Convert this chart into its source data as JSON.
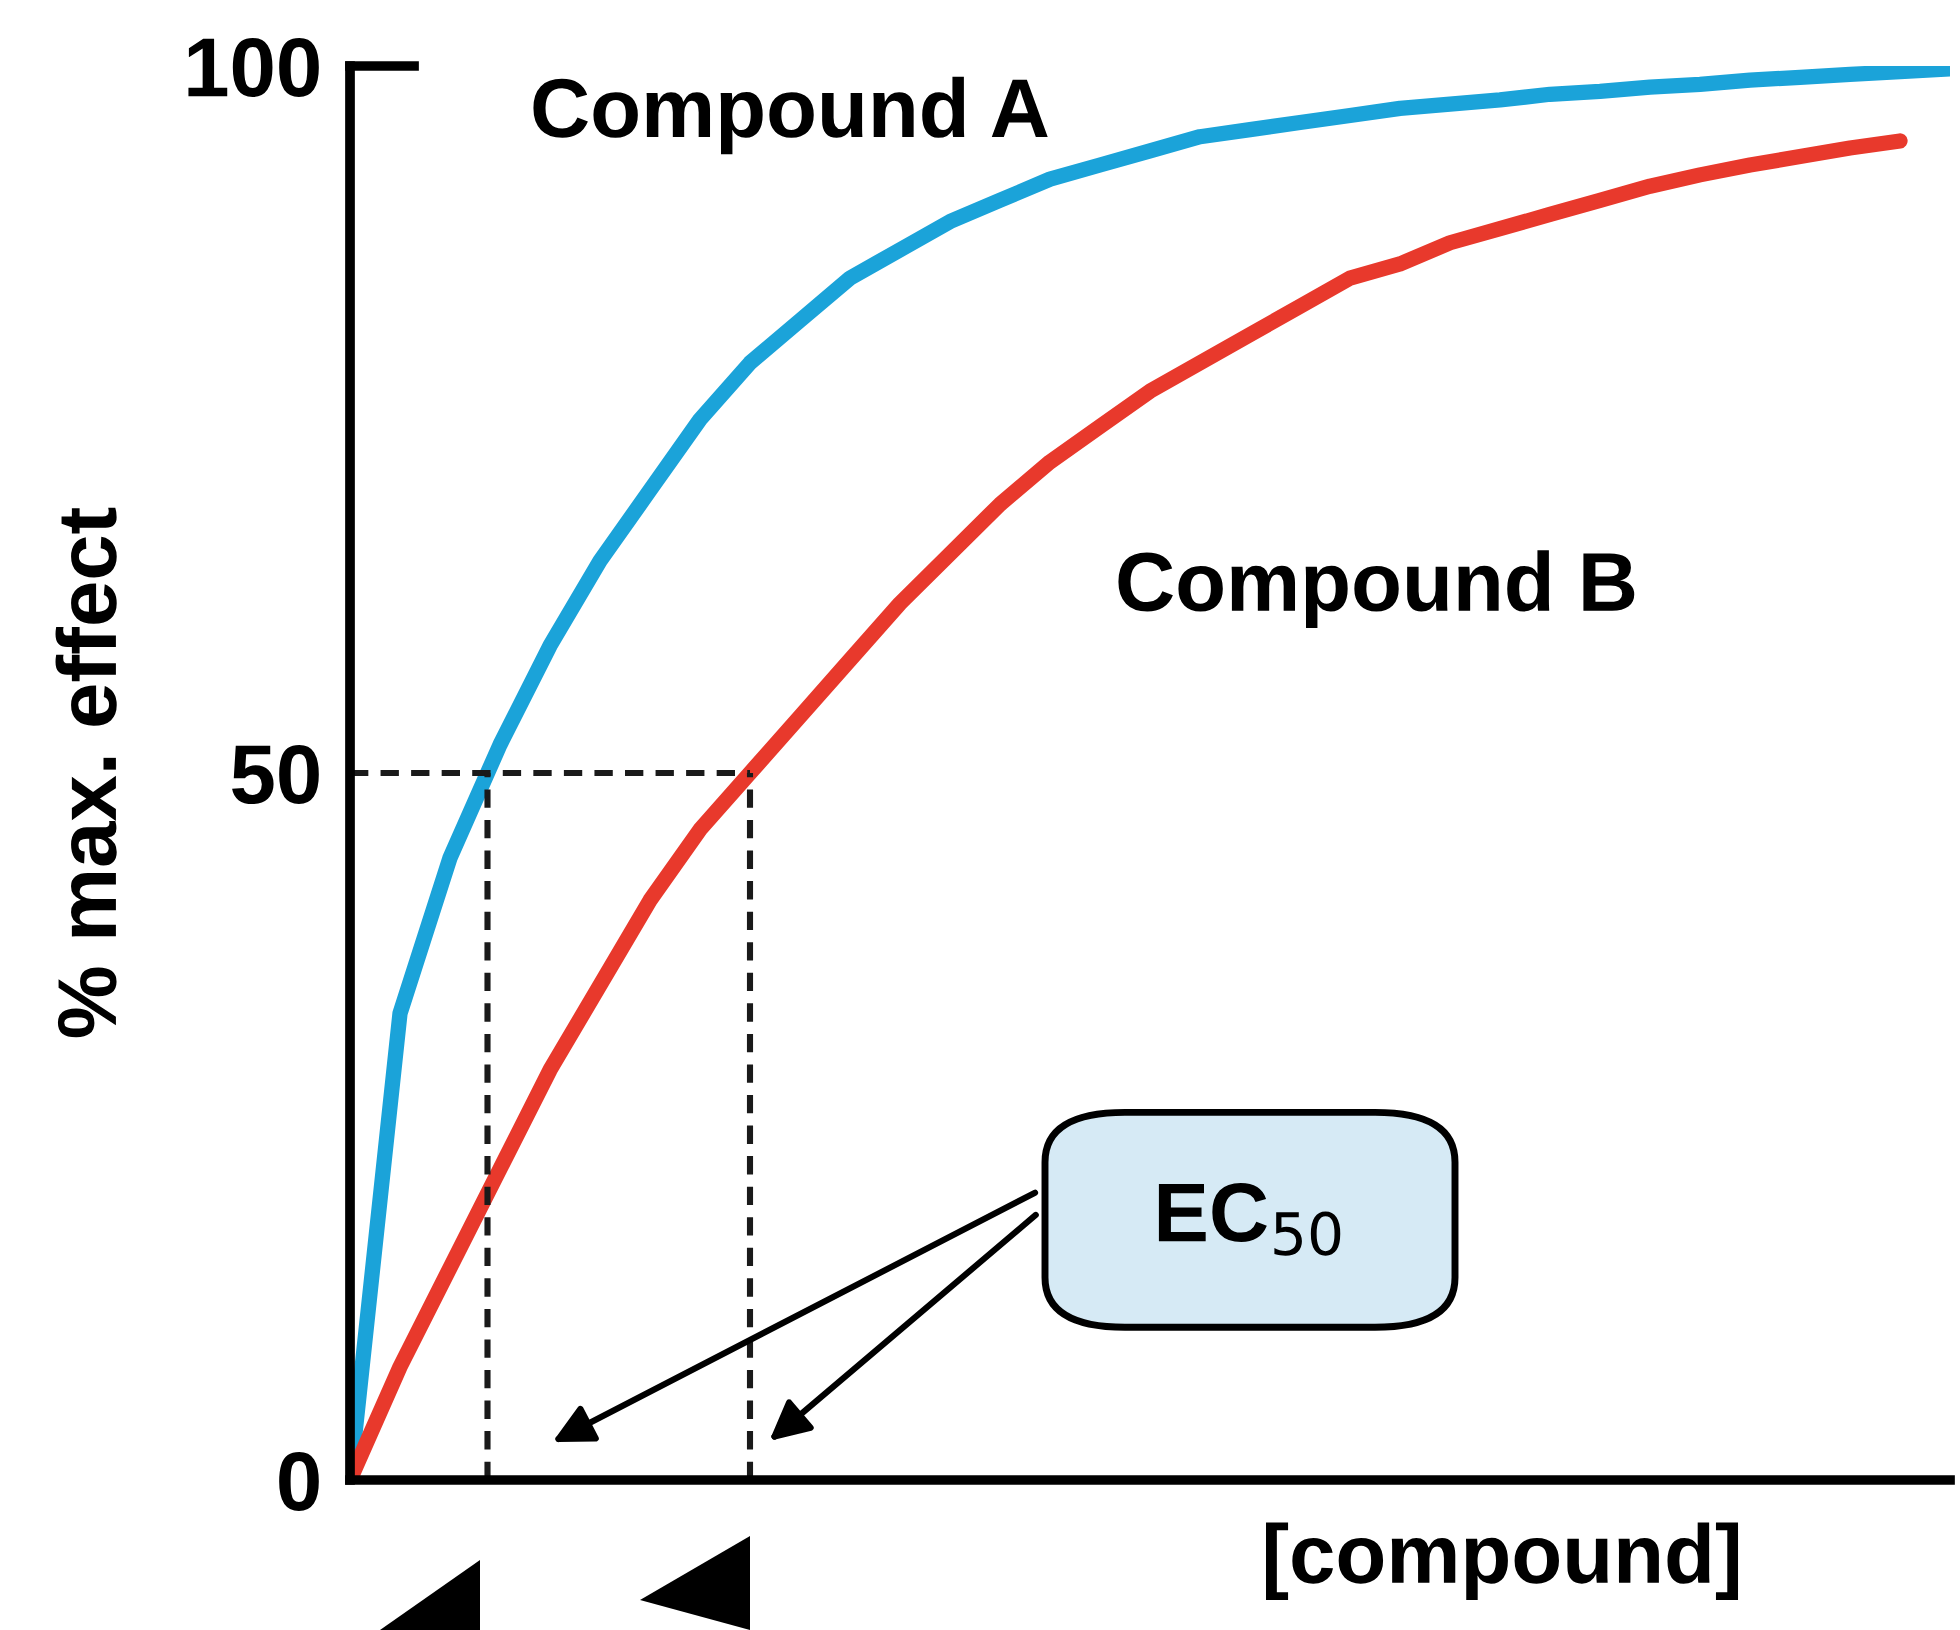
{
  "chart_data": {
    "type": "line",
    "ylabel": "% max. effect",
    "xlabel": "[compound]",
    "categories": [
      null,
      null,
      null,
      null,
      null,
      null,
      null,
      null,
      null,
      null,
      null,
      null,
      null,
      null,
      null,
      null,
      null,
      null,
      null,
      null,
      null,
      null,
      null,
      null,
      null,
      null,
      null,
      null,
      null,
      null,
      null,
      null,
      null
    ],
    "series": [
      {
        "name": "Compound A",
        "color": "#1ba3d9",
        "values": [
          0,
          33,
          44,
          52,
          59,
          65,
          70,
          75,
          79,
          82,
          85,
          87,
          89,
          90.5,
          92,
          93,
          94,
          95,
          95.5,
          96,
          96.5,
          97,
          97.3,
          97.6,
          98,
          98.2,
          98.5,
          98.7,
          99,
          99.2,
          99.4,
          99.6,
          99.8
        ]
      },
      {
        "name": "Compound B",
        "color": "#e8392c",
        "values": [
          0,
          8,
          15,
          22,
          29,
          35,
          41,
          46,
          50,
          54,
          58,
          62,
          65.5,
          69,
          72,
          74.5,
          77,
          79,
          81,
          83,
          85,
          86,
          87.5,
          88.5,
          89.5,
          90.5,
          91.5,
          92.3,
          93,
          93.6,
          94.2,
          94.7,
          null
        ]
      }
    ],
    "ylim": [
      0,
      100
    ],
    "yticks": [
      0,
      50,
      100
    ],
    "tick_labels": "y",
    "grid": false,
    "legend": false,
    "ref_lines": [
      {
        "axis": "y",
        "value": 50,
        "label": null,
        "line_style": "dashed",
        "color": "#1a1a1a"
      }
    ],
    "annotations": [
      "EC$_{50}$"
    ]
  }
}
